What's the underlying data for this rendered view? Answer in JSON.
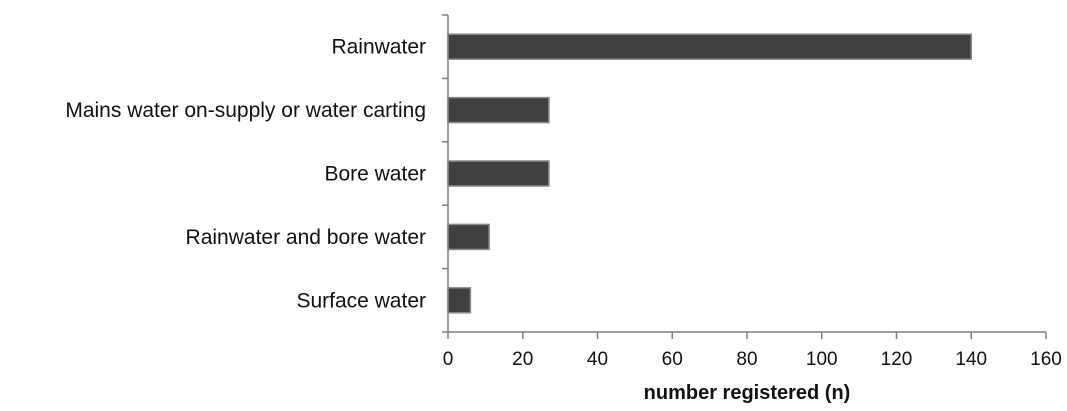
{
  "chart_data": {
    "type": "bar",
    "orientation": "horizontal",
    "categories": [
      "Rainwater",
      "Mains water on-supply or water carting",
      "Bore water",
      "Rainwater and bore water",
      "Surface water"
    ],
    "values": [
      140,
      27,
      27,
      11,
      6
    ],
    "xlabel": "number registered (n)",
    "ylabel": "",
    "xlim": [
      0,
      160
    ],
    "xticks": [
      "0",
      "20",
      "40",
      "60",
      "80",
      "100",
      "120",
      "140",
      "160"
    ],
    "grid": false,
    "legend": "none",
    "colors": {
      "bar_fill": "#404040",
      "bar_stroke": "#8a8a8a",
      "axis": "#7f7f7f",
      "text": "#111111"
    }
  }
}
